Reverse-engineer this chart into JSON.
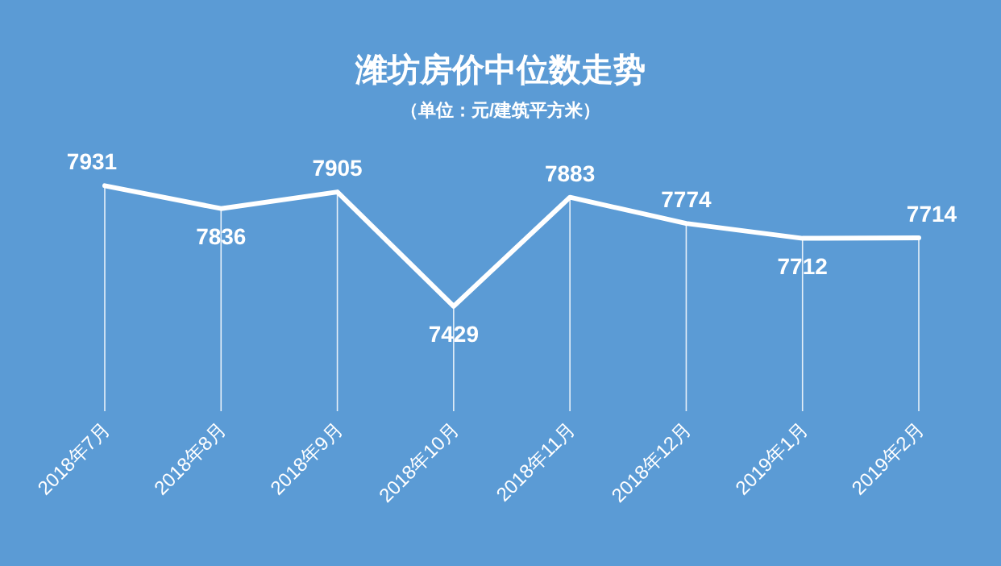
{
  "chart_data": {
    "type": "line",
    "title": "潍坊房价中位数走势",
    "subtitle": "（单位：元/建筑平方米）",
    "categories": [
      "2018年7月",
      "2018年8月",
      "2018年9月",
      "2018年10月",
      "2018年11月",
      "2018年12月",
      "2019年1月",
      "2019年2月"
    ],
    "series": [
      {
        "color": "#ffffff",
        "values": [
          7931,
          7836,
          7905,
          7429,
          7883,
          7774,
          7712,
          7714
        ]
      }
    ],
    "data_labels": true,
    "grid": "x"
  }
}
